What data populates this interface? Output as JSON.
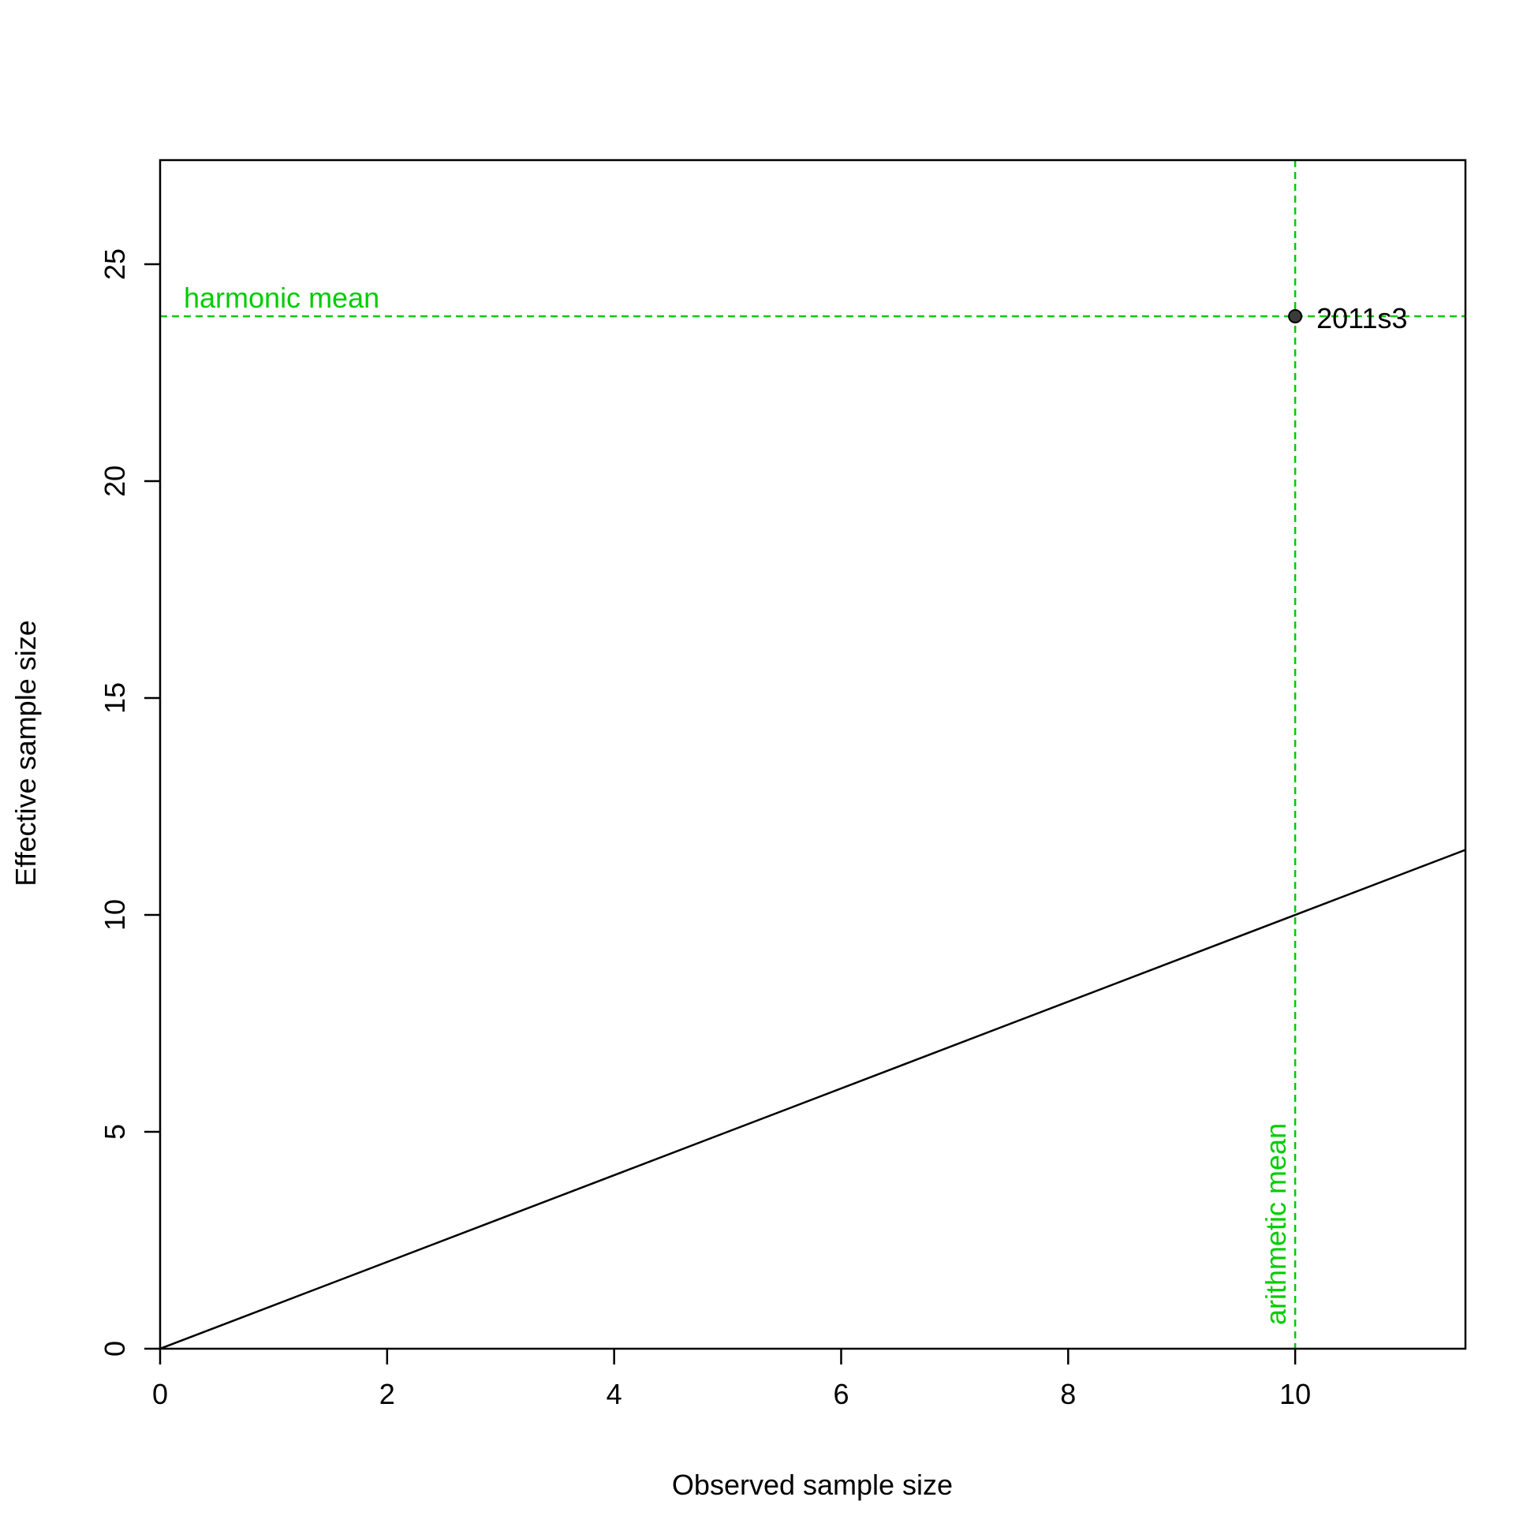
{
  "chart_data": {
    "type": "scatter",
    "title": "",
    "xlabel": "Observed sample size",
    "ylabel": "Effective sample size",
    "xlim": [
      0,
      11.5
    ],
    "ylim": [
      0,
      27.4
    ],
    "x_ticks": [
      0,
      2,
      4,
      6,
      8,
      10
    ],
    "y_ticks": [
      0,
      5,
      10,
      15,
      20,
      25
    ],
    "grid": false,
    "points": [
      {
        "x": 10,
        "y": 23.8,
        "label": "2011s3"
      }
    ],
    "reference_lines": {
      "identity": {
        "type": "y=x",
        "color": "#000000"
      },
      "harmonic_mean": {
        "orientation": "horizontal",
        "value": 23.8,
        "label": "harmonic mean",
        "color": "#00CC00",
        "style": "dashed"
      },
      "arithmetic_mean": {
        "orientation": "vertical",
        "value": 10,
        "label": "arithmetic mean",
        "color": "#00CC00",
        "style": "dashed"
      }
    },
    "point_color": "#3a3a3a"
  }
}
